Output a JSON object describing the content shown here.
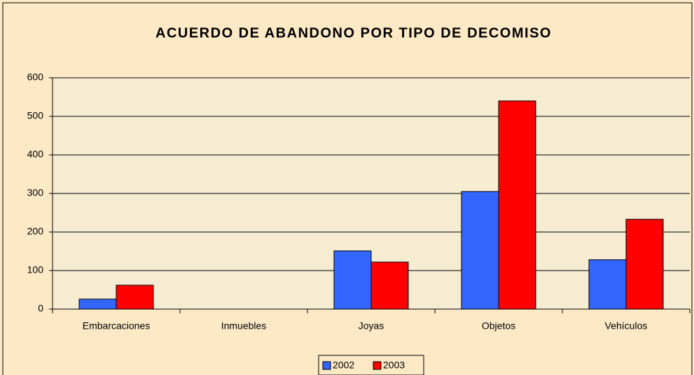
{
  "chart_data": {
    "type": "bar",
    "title": "ACUERDO DE ABANDONO POR TIPO DE DECOMISO",
    "categories": [
      "Embarcaciones",
      "Inmuebles",
      "Joyas",
      "Objetos",
      "Vehículos"
    ],
    "series": [
      {
        "name": "2002",
        "color": "#3366ff",
        "values": [
          26,
          0,
          151,
          305,
          128
        ]
      },
      {
        "name": "2003",
        "color": "#ff0000",
        "values": [
          62,
          0,
          122,
          540,
          233
        ]
      }
    ],
    "ylim": [
      0,
      600
    ],
    "yticks": [
      0,
      100,
      200,
      300,
      400,
      500,
      600
    ],
    "grid": true,
    "legend": "bottom"
  }
}
